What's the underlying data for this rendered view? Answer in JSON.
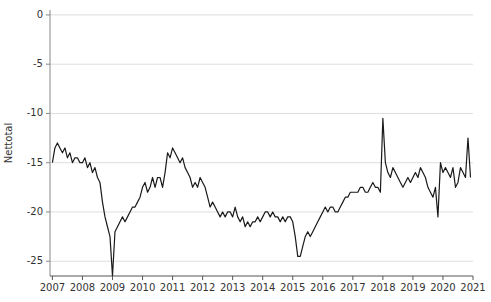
{
  "chart_data": {
    "type": "line",
    "ylabel": "Nettotal",
    "color": "#1a1a1a",
    "grid": true,
    "xlim": [
      2006.92,
      2021.0
    ],
    "ylim": [
      -26.5,
      0.5
    ],
    "xticks": [
      2007,
      2008,
      2009,
      2010,
      2011,
      2012,
      2013,
      2014,
      2015,
      2016,
      2017,
      2018,
      2019,
      2020,
      2021
    ],
    "yticks": [
      0,
      -5,
      -10,
      -15,
      -20,
      -25
    ],
    "x": [
      2007.0,
      2007.083,
      2007.167,
      2007.25,
      2007.333,
      2007.417,
      2007.5,
      2007.583,
      2007.667,
      2007.75,
      2007.833,
      2007.917,
      2008.0,
      2008.083,
      2008.167,
      2008.25,
      2008.333,
      2008.417,
      2008.5,
      2008.583,
      2008.667,
      2008.75,
      2008.833,
      2008.917,
      2009.0,
      2009.083,
      2009.167,
      2009.25,
      2009.333,
      2009.417,
      2009.5,
      2009.583,
      2009.667,
      2009.75,
      2009.833,
      2009.917,
      2010.0,
      2010.083,
      2010.167,
      2010.25,
      2010.333,
      2010.417,
      2010.5,
      2010.583,
      2010.667,
      2010.75,
      2010.833,
      2010.917,
      2011.0,
      2011.083,
      2011.167,
      2011.25,
      2011.333,
      2011.417,
      2011.5,
      2011.583,
      2011.667,
      2011.75,
      2011.833,
      2011.917,
      2012.0,
      2012.083,
      2012.167,
      2012.25,
      2012.333,
      2012.417,
      2012.5,
      2012.583,
      2012.667,
      2012.75,
      2012.833,
      2012.917,
      2013.0,
      2013.083,
      2013.167,
      2013.25,
      2013.333,
      2013.417,
      2013.5,
      2013.583,
      2013.667,
      2013.75,
      2013.833,
      2013.917,
      2014.0,
      2014.083,
      2014.167,
      2014.25,
      2014.333,
      2014.417,
      2014.5,
      2014.583,
      2014.667,
      2014.75,
      2014.833,
      2014.917,
      2015.0,
      2015.083,
      2015.167,
      2015.25,
      2015.333,
      2015.417,
      2015.5,
      2015.583,
      2015.667,
      2015.75,
      2015.833,
      2015.917,
      2016.0,
      2016.083,
      2016.167,
      2016.25,
      2016.333,
      2016.417,
      2016.5,
      2016.583,
      2016.667,
      2016.75,
      2016.833,
      2016.917,
      2017.0,
      2017.083,
      2017.167,
      2017.25,
      2017.333,
      2017.417,
      2017.5,
      2017.583,
      2017.667,
      2017.75,
      2017.833,
      2017.917,
      2018.0,
      2018.083,
      2018.167,
      2018.25,
      2018.333,
      2018.417,
      2018.5,
      2018.583,
      2018.667,
      2018.75,
      2018.833,
      2018.917,
      2019.0,
      2019.083,
      2019.167,
      2019.25,
      2019.333,
      2019.417,
      2019.5,
      2019.583,
      2019.667,
      2019.75,
      2019.833,
      2019.917,
      2020.0,
      2020.083,
      2020.167,
      2020.25,
      2020.333,
      2020.417,
      2020.5,
      2020.583,
      2020.667,
      2020.75,
      2020.833,
      2020.917
    ],
    "values": [
      -15.0,
      -13.5,
      -13.0,
      -13.5,
      -14.0,
      -13.5,
      -14.5,
      -14.0,
      -15.0,
      -14.5,
      -14.5,
      -15.0,
      -15.0,
      -14.5,
      -15.5,
      -15.0,
      -16.0,
      -15.5,
      -16.5,
      -17.0,
      -19.0,
      -20.5,
      -21.5,
      -22.5,
      -26.5,
      -22.0,
      -21.5,
      -21.0,
      -20.5,
      -21.0,
      -20.5,
      -20.0,
      -19.5,
      -19.5,
      -19.0,
      -18.5,
      -17.5,
      -17.0,
      -18.0,
      -17.5,
      -16.5,
      -17.5,
      -16.5,
      -16.5,
      -17.5,
      -16.0,
      -14.0,
      -14.5,
      -13.5,
      -14.0,
      -14.5,
      -15.0,
      -14.5,
      -15.5,
      -16.0,
      -16.5,
      -17.5,
      -17.0,
      -17.5,
      -16.5,
      -17.0,
      -17.5,
      -18.5,
      -19.5,
      -19.0,
      -19.5,
      -20.0,
      -20.5,
      -20.0,
      -20.5,
      -20.0,
      -20.0,
      -20.5,
      -19.5,
      -20.5,
      -21.0,
      -20.5,
      -21.5,
      -21.0,
      -21.5,
      -21.0,
      -21.0,
      -20.5,
      -21.0,
      -20.5,
      -20.0,
      -20.0,
      -20.5,
      -20.0,
      -20.5,
      -20.5,
      -21.0,
      -20.5,
      -21.0,
      -20.5,
      -20.5,
      -21.0,
      -22.5,
      -24.5,
      -24.5,
      -23.5,
      -22.5,
      -22.0,
      -22.5,
      -22.0,
      -21.5,
      -21.0,
      -20.5,
      -20.0,
      -19.5,
      -20.0,
      -19.5,
      -19.5,
      -20.0,
      -20.0,
      -19.5,
      -19.0,
      -18.5,
      -18.5,
      -18.0,
      -18.0,
      -18.0,
      -18.0,
      -17.5,
      -17.5,
      -18.0,
      -18.0,
      -17.5,
      -17.0,
      -17.5,
      -17.5,
      -18.0,
      -10.5,
      -15.0,
      -16.0,
      -16.5,
      -15.5,
      -16.0,
      -16.5,
      -17.0,
      -17.5,
      -17.0,
      -16.5,
      -17.0,
      -16.5,
      -16.0,
      -16.5,
      -15.5,
      -16.0,
      -16.5,
      -17.5,
      -18.0,
      -18.5,
      -17.5,
      -20.5,
      -15.0,
      -16.0,
      -15.5,
      -16.0,
      -16.5,
      -15.5,
      -17.5,
      -17.0,
      -15.5,
      -16.0,
      -16.5,
      -12.5,
      -16.5
    ]
  }
}
